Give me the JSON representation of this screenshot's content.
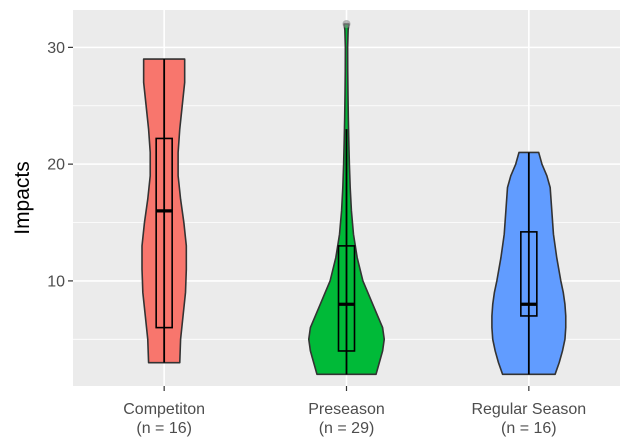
{
  "chart_data": {
    "type": "violin",
    "title": "",
    "xlabel": "",
    "ylabel": "Impacts",
    "ylim": [
      1,
      33.2
    ],
    "yticks": [
      10,
      20,
      30
    ],
    "grid": true,
    "legend": "none",
    "panel_color": "#ebebeb",
    "grid_color": "#ffffff",
    "categories": [
      {
        "label": "Competiton",
        "n_label": "(n = 16)",
        "color": "#f8766d",
        "min": 3,
        "q1": 6,
        "median": 16,
        "q3": 22.2,
        "max": 29,
        "outliers": [],
        "density_halfwidth": [
          [
            3,
            0.19
          ],
          [
            5,
            0.2
          ],
          [
            7,
            0.23
          ],
          [
            9,
            0.26
          ],
          [
            11,
            0.27
          ],
          [
            13,
            0.27
          ],
          [
            15,
            0.24
          ],
          [
            17,
            0.2
          ],
          [
            19,
            0.17
          ],
          [
            21,
            0.17
          ],
          [
            23,
            0.19
          ],
          [
            25,
            0.22
          ],
          [
            27,
            0.25
          ],
          [
            29,
            0.25
          ]
        ]
      },
      {
        "label": "Preseason",
        "n_label": "(n = 29)",
        "color": "#00ba38",
        "min": 2,
        "q1": 4,
        "median": 8,
        "q3": 13,
        "max": 23,
        "outliers": [
          32
        ],
        "density_halfwidth": [
          [
            2,
            0.36
          ],
          [
            3,
            0.4
          ],
          [
            4,
            0.44
          ],
          [
            5,
            0.46
          ],
          [
            6,
            0.44
          ],
          [
            7,
            0.38
          ],
          [
            8,
            0.32
          ],
          [
            9,
            0.26
          ],
          [
            10,
            0.2
          ],
          [
            12,
            0.13
          ],
          [
            14,
            0.085
          ],
          [
            16,
            0.06
          ],
          [
            18,
            0.045
          ],
          [
            20,
            0.035
          ],
          [
            22,
            0.028
          ],
          [
            24,
            0.022
          ],
          [
            26,
            0.018
          ],
          [
            28,
            0.015
          ],
          [
            30,
            0.014
          ],
          [
            31.5,
            0.02
          ],
          [
            32,
            0.03
          ]
        ]
      },
      {
        "label": "Regular Season",
        "n_label": "(n = 16)",
        "color": "#619cff",
        "min": 2,
        "q1": 7,
        "median": 8,
        "q3": 14.2,
        "max": 21,
        "outliers": [],
        "density_halfwidth": [
          [
            2,
            0.32
          ],
          [
            3,
            0.37
          ],
          [
            4,
            0.41
          ],
          [
            5,
            0.44
          ],
          [
            6,
            0.45
          ],
          [
            7,
            0.45
          ],
          [
            8,
            0.44
          ],
          [
            9,
            0.42
          ],
          [
            10,
            0.39
          ],
          [
            12,
            0.34
          ],
          [
            14,
            0.3
          ],
          [
            16,
            0.28
          ],
          [
            18,
            0.26
          ],
          [
            19,
            0.22
          ],
          [
            20,
            0.16
          ],
          [
            21,
            0.12
          ]
        ]
      }
    ]
  }
}
